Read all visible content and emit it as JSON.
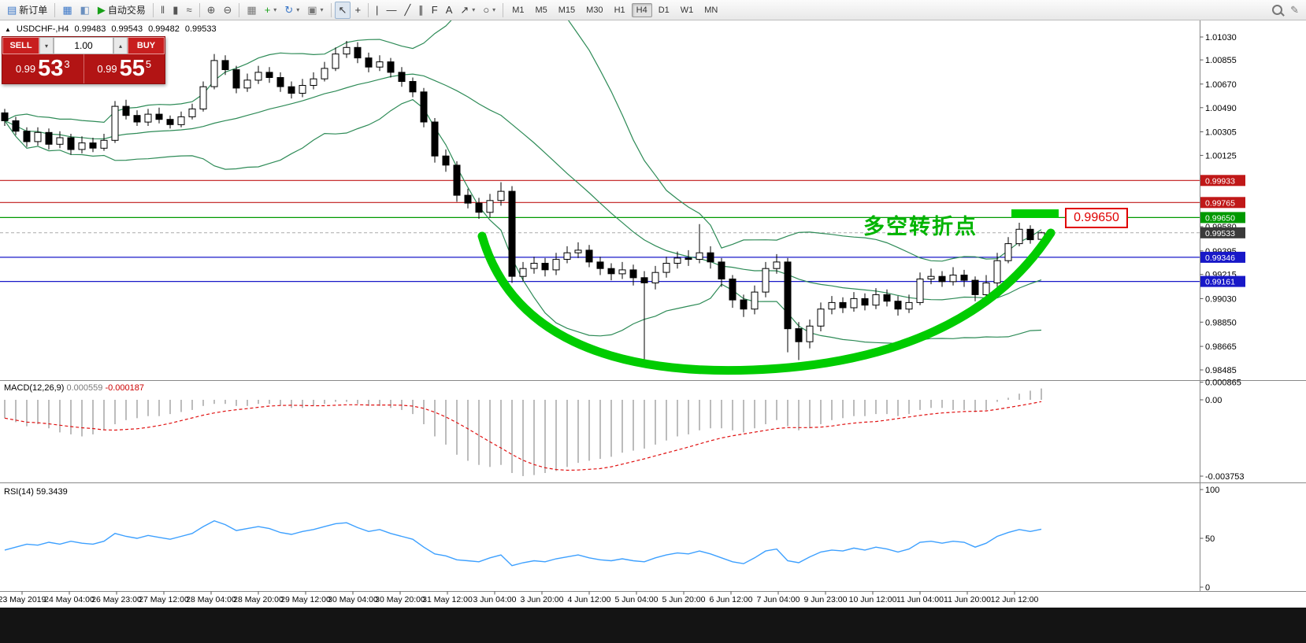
{
  "toolbar": {
    "timeframes": [
      "M1",
      "M5",
      "M15",
      "M30",
      "H1",
      "H4",
      "D1",
      "W1",
      "MN"
    ],
    "active_timeframe": "H4",
    "items": [
      {
        "kind": "labeled",
        "name": "new-order",
        "glyph": "▤",
        "glyph_color": "#3c78c8",
        "label": "新订单"
      },
      {
        "kind": "sep"
      },
      {
        "kind": "icon",
        "name": "chart-windows",
        "glyph": "▦",
        "color": "#3c78c8"
      },
      {
        "kind": "icon",
        "name": "profiles",
        "glyph": "◧",
        "color": "#6a8fbf"
      },
      {
        "kind": "labeled",
        "name": "autotrading",
        "glyph": "▶",
        "glyph_color": "#18a018",
        "label": "自动交易"
      },
      {
        "kind": "sep"
      },
      {
        "kind": "icon",
        "name": "bar-chart",
        "glyph": "‖",
        "color": "#555555"
      },
      {
        "kind": "icon",
        "name": "candlestick-chart",
        "glyph": "▮",
        "color": "#555555"
      },
      {
        "kind": "icon",
        "name": "line-chart",
        "glyph": "≈",
        "color": "#555555"
      },
      {
        "kind": "sep"
      },
      {
        "kind": "icon",
        "name": "zoom-in",
        "glyph": "⊕",
        "color": "#555555"
      },
      {
        "kind": "icon",
        "name": "zoom-out",
        "glyph": "⊖",
        "color": "#555555"
      },
      {
        "kind": "sep"
      },
      {
        "kind": "icon",
        "name": "tile-windows",
        "glyph": "▦",
        "color": "#777777"
      },
      {
        "kind": "icon",
        "name": "indicators",
        "glyph": "+",
        "color": "#18a018",
        "caret": true
      },
      {
        "kind": "icon",
        "name": "periods",
        "glyph": "↻",
        "color": "#3c78c8",
        "caret": true
      },
      {
        "kind": "icon",
        "name": "templates",
        "glyph": "▣",
        "color": "#777777",
        "caret": true
      },
      {
        "kind": "sep"
      },
      {
        "kind": "icon",
        "name": "cursor",
        "glyph": "↖",
        "color": "#333333",
        "active": true
      },
      {
        "kind": "icon",
        "name": "crosshair",
        "glyph": "+",
        "color": "#333333"
      },
      {
        "kind": "sep"
      },
      {
        "kind": "icon",
        "name": "vertical-line",
        "glyph": "|",
        "color": "#333333"
      },
      {
        "kind": "icon",
        "name": "horizontal-line",
        "glyph": "—",
        "color": "#333333"
      },
      {
        "kind": "icon",
        "name": "trendline",
        "glyph": "╱",
        "color": "#333333"
      },
      {
        "kind": "icon",
        "name": "equidistant-channel",
        "glyph": "∥",
        "color": "#333333"
      },
      {
        "kind": "icon",
        "name": "fibonacci",
        "glyph": "F",
        "color": "#333333"
      },
      {
        "kind": "icon",
        "name": "text-label",
        "glyph": "A",
        "color": "#333333"
      },
      {
        "kind": "icon",
        "name": "arrows",
        "glyph": "↗",
        "color": "#333333",
        "caret": true
      },
      {
        "kind": "icon",
        "name": "shapes",
        "glyph": "○",
        "color": "#333333",
        "caret": true
      },
      {
        "kind": "sep"
      },
      {
        "kind": "timeframes"
      },
      {
        "kind": "spacer"
      },
      {
        "kind": "search"
      },
      {
        "kind": "icon",
        "name": "edit",
        "glyph": "✎",
        "color": "#777777"
      }
    ]
  },
  "symbol_bar": {
    "icon": "▲",
    "symbol": "USDCHF-,H4",
    "open": "0.99483",
    "high": "0.99543",
    "low": "0.99482",
    "close": "0.99533"
  },
  "trade_panel": {
    "sell_label": "SELL",
    "buy_label": "BUY",
    "volume": "1.00",
    "dropdown_icon": "▾",
    "up_icon": "▴",
    "sell_price": {
      "main": "0.99",
      "big": "53",
      "sup": "3"
    },
    "buy_price": {
      "main": "0.99",
      "big": "55",
      "sup": "5"
    }
  },
  "annotation": {
    "text": "多空转折点",
    "callout_price": "0.99650"
  },
  "chart_data": {
    "type": "candlestick",
    "symbol": "USDCHF-",
    "timeframe": "H4",
    "arc_color": "#00cc00",
    "price_axis_ticks": [
      "1.01030",
      "1.00855",
      "1.00670",
      "1.00490",
      "1.00305",
      "1.00125",
      "0.99945",
      "0.99765",
      "0.99580",
      "0.99395",
      "0.99215",
      "0.99030",
      "0.98850",
      "0.98665",
      "0.98485"
    ],
    "levels": [
      {
        "price": 0.99933,
        "label": "0.99933",
        "color": "#c01818"
      },
      {
        "price": 0.99765,
        "label": "0.99765",
        "color": "#c01818"
      },
      {
        "price": 0.9965,
        "label": "0.99650",
        "color": "#009900"
      },
      {
        "price": 0.99346,
        "label": "0.99346",
        "color": "#1818c8"
      },
      {
        "price": 0.99161,
        "label": "0.99161",
        "color": "#1818c8"
      }
    ],
    "current_price": {
      "value": 0.99533,
      "label": "0.99533",
      "tag_color": "#3a3a3a"
    },
    "bollinger": {
      "period": 20,
      "deviation": 2,
      "color": "#2e8b57"
    },
    "time_labels": [
      "23 May 2019",
      "24 May 04:00",
      "26 May 23:00",
      "27 May 12:00",
      "28 May 04:00",
      "28 May 20:00",
      "29 May 12:00",
      "30 May 04:00",
      "30 May 20:00",
      "31 May 12:00",
      "3 Jun 04:00",
      "3 Jun 20:00",
      "4 Jun 12:00",
      "5 Jun 04:00",
      "5 Jun 20:00",
      "6 Jun 12:00",
      "7 Jun 04:00",
      "9 Jun 23:00",
      "10 Jun 12:00",
      "11 Jun 04:00",
      "11 Jun 20:00",
      "12 Jun 12:00"
    ],
    "ohlc": [
      [
        1.0045,
        1.0048,
        1.0035,
        1.0039
      ],
      [
        1.0039,
        1.0042,
        1.0028,
        1.0031
      ],
      [
        1.0031,
        1.0034,
        1.0019,
        1.0023
      ],
      [
        1.0023,
        1.0034,
        1.002,
        1.003
      ],
      [
        1.003,
        1.0033,
        1.0017,
        1.0021
      ],
      [
        1.0021,
        1.0031,
        1.0018,
        1.0026
      ],
      [
        1.0026,
        1.0029,
        1.0013,
        1.0017
      ],
      [
        1.0017,
        1.0027,
        1.0014,
        1.0022
      ],
      [
        1.0022,
        1.0026,
        1.0015,
        1.0018
      ],
      [
        1.0018,
        1.0029,
        1.0016,
        1.0024
      ],
      [
        1.0024,
        1.0054,
        1.0022,
        1.005
      ],
      [
        1.005,
        1.0055,
        1.004,
        1.0043
      ],
      [
        1.0043,
        1.0047,
        1.0035,
        1.0038
      ],
      [
        1.0038,
        1.0048,
        1.0035,
        1.0044
      ],
      [
        1.0044,
        1.0049,
        1.0037,
        1.004
      ],
      [
        1.004,
        1.0043,
        1.0033,
        1.0036
      ],
      [
        1.0036,
        1.0046,
        1.0034,
        1.0042
      ],
      [
        1.0042,
        1.0052,
        1.004,
        1.0048
      ],
      [
        1.0048,
        1.0069,
        1.0046,
        1.0065
      ],
      [
        1.0065,
        1.009,
        1.0063,
        1.0085
      ],
      [
        1.0085,
        1.0089,
        1.0074,
        1.0078
      ],
      [
        1.0078,
        1.0081,
        1.006,
        1.0064
      ],
      [
        1.0064,
        1.0075,
        1.0061,
        1.007
      ],
      [
        1.007,
        1.0081,
        1.0067,
        1.0076
      ],
      [
        1.0076,
        1.008,
        1.0068,
        1.0072
      ],
      [
        1.0072,
        1.0076,
        1.0061,
        1.0065
      ],
      [
        1.0065,
        1.0069,
        1.0056,
        1.006
      ],
      [
        1.006,
        1.0071,
        1.0057,
        1.0066
      ],
      [
        1.0066,
        1.0076,
        1.0063,
        1.0071
      ],
      [
        1.0071,
        1.0084,
        1.0069,
        1.0079
      ],
      [
        1.0079,
        1.0095,
        1.0077,
        1.009
      ],
      [
        1.009,
        1.01,
        1.0087,
        1.0095
      ],
      [
        1.0095,
        1.0099,
        1.0083,
        1.0087
      ],
      [
        1.0087,
        1.0091,
        1.0076,
        1.008
      ],
      [
        1.008,
        1.0089,
        1.0077,
        1.0084
      ],
      [
        1.0084,
        1.0087,
        1.0072,
        1.0076
      ],
      [
        1.0076,
        1.008,
        1.0065,
        1.0069
      ],
      [
        1.0069,
        1.0072,
        1.0057,
        1.0061
      ],
      [
        1.0061,
        1.0064,
        1.0034,
        1.0038
      ],
      [
        1.0038,
        1.0041,
        1.0007,
        1.0012
      ],
      [
        1.0012,
        1.0017,
        1.0,
        1.0005
      ],
      [
        1.0005,
        1.0008,
        0.9977,
        0.9982
      ],
      [
        0.9982,
        0.9987,
        0.9972,
        0.9976
      ],
      [
        0.9976,
        0.998,
        0.9964,
        0.9969
      ],
      [
        0.9969,
        0.9983,
        0.9965,
        0.9978
      ],
      [
        0.9978,
        0.9992,
        0.9974,
        0.9985
      ],
      [
        0.9985,
        0.9989,
        0.9915,
        0.992
      ],
      [
        0.992,
        0.9931,
        0.9916,
        0.9926
      ],
      [
        0.9926,
        0.9935,
        0.9922,
        0.993
      ],
      [
        0.993,
        0.9934,
        0.992,
        0.9925
      ],
      [
        0.9925,
        0.9938,
        0.9921,
        0.9933
      ],
      [
        0.9933,
        0.9943,
        0.993,
        0.9938
      ],
      [
        0.9938,
        0.9946,
        0.9934,
        0.994
      ],
      [
        0.994,
        0.9944,
        0.9927,
        0.9931
      ],
      [
        0.9931,
        0.9935,
        0.9921,
        0.9926
      ],
      [
        0.9926,
        0.993,
        0.9917,
        0.9922
      ],
      [
        0.9922,
        0.9931,
        0.9918,
        0.9925
      ],
      [
        0.9925,
        0.9929,
        0.9913,
        0.9919
      ],
      [
        0.9919,
        0.9924,
        0.9851,
        0.9915
      ],
      [
        0.9915,
        0.9928,
        0.991,
        0.9923
      ],
      [
        0.9923,
        0.9935,
        0.9919,
        0.993
      ],
      [
        0.993,
        0.9939,
        0.9926,
        0.9934
      ],
      [
        0.9934,
        0.994,
        0.9928,
        0.9933
      ],
      [
        0.9933,
        0.996,
        0.993,
        0.9938
      ],
      [
        0.9938,
        0.9943,
        0.9926,
        0.9931
      ],
      [
        0.9931,
        0.9934,
        0.9912,
        0.9918
      ],
      [
        0.9918,
        0.9921,
        0.9896,
        0.9902
      ],
      [
        0.9902,
        0.9906,
        0.9889,
        0.9895
      ],
      [
        0.9895,
        0.9913,
        0.9891,
        0.9908
      ],
      [
        0.9908,
        0.9931,
        0.9904,
        0.9926
      ],
      [
        0.9926,
        0.9937,
        0.9922,
        0.9931
      ],
      [
        0.9931,
        0.9934,
        0.9862,
        0.988
      ],
      [
        0.988,
        0.9885,
        0.9856,
        0.987
      ],
      [
        0.987,
        0.9887,
        0.9865,
        0.9882
      ],
      [
        0.9882,
        0.99,
        0.9878,
        0.9895
      ],
      [
        0.9895,
        0.9905,
        0.9891,
        0.99
      ],
      [
        0.99,
        0.9904,
        0.9892,
        0.9896
      ],
      [
        0.9896,
        0.9908,
        0.9893,
        0.9903
      ],
      [
        0.9903,
        0.9907,
        0.9894,
        0.9898
      ],
      [
        0.9898,
        0.9911,
        0.9895,
        0.9906
      ],
      [
        0.9906,
        0.991,
        0.9897,
        0.9901
      ],
      [
        0.9901,
        0.9905,
        0.989,
        0.9895
      ],
      [
        0.9895,
        0.9906,
        0.9892,
        0.99
      ],
      [
        0.99,
        0.9923,
        0.9898,
        0.9918
      ],
      [
        0.9918,
        0.9926,
        0.9914,
        0.992
      ],
      [
        0.992,
        0.9924,
        0.9912,
        0.9916
      ],
      [
        0.9916,
        0.9927,
        0.9913,
        0.9921
      ],
      [
        0.9921,
        0.9925,
        0.9912,
        0.9917
      ],
      [
        0.9917,
        0.992,
        0.9901,
        0.9906
      ],
      [
        0.9906,
        0.9921,
        0.9903,
        0.9915
      ],
      [
        0.9915,
        0.9938,
        0.9912,
        0.9932
      ],
      [
        0.9932,
        0.995,
        0.993,
        0.9945
      ],
      [
        0.9945,
        0.9961,
        0.9943,
        0.9956
      ],
      [
        0.9956,
        0.9959,
        0.9945,
        0.9948
      ],
      [
        0.99483,
        0.99543,
        0.99482,
        0.99533
      ]
    ],
    "macd": {
      "label": "MACD(12,26,9)",
      "main_value": "0.000559",
      "signal_value": "-0.000187",
      "axis": [
        "0.000865",
        "0.00",
        "-0.003753"
      ],
      "histogram": [
        -0.0009,
        -0.0011,
        -0.0013,
        -0.0012,
        -0.0014,
        -0.0016,
        -0.0017,
        -0.0018,
        -0.0017,
        -0.0015,
        -0.0012,
        -0.001,
        -0.0009,
        -0.0008,
        -0.0008,
        -0.0007,
        -0.0006,
        -0.0005,
        -0.0003,
        -0.0002,
        -0.0002,
        -0.0003,
        -0.0003,
        -0.0002,
        -0.0002,
        -0.0003,
        -0.0004,
        -0.0004,
        -0.0003,
        -0.0002,
        -0.0001,
        -0.0001,
        -0.0002,
        -0.0003,
        -0.0003,
        -0.0004,
        -0.0005,
        -0.0007,
        -0.0012,
        -0.0018,
        -0.0022,
        -0.0027,
        -0.003,
        -0.0032,
        -0.0033,
        -0.0032,
        -0.0036,
        -0.00375,
        -0.0037,
        -0.0036,
        -0.0035,
        -0.0033,
        -0.0031,
        -0.003,
        -0.0029,
        -0.0028,
        -0.0026,
        -0.0025,
        -0.0024,
        -0.0022,
        -0.002,
        -0.0018,
        -0.0017,
        -0.0015,
        -0.0014,
        -0.0014,
        -0.0015,
        -0.0016,
        -0.0014,
        -0.0012,
        -0.001,
        -0.0013,
        -0.0015,
        -0.0014,
        -0.0012,
        -0.001,
        -0.0009,
        -0.0008,
        -0.0008,
        -0.0007,
        -0.0007,
        -0.0008,
        -0.0007,
        -0.0005,
        -0.0004,
        -0.0004,
        -0.0005,
        -0.0005,
        -0.0006,
        -0.0005,
        -0.0001,
        0.0001,
        0.0003,
        0.00045,
        0.000559
      ]
    },
    "rsi": {
      "label": "RSI(14)",
      "value": "59.3439",
      "color": "#3da0ff",
      "axis": [
        "100",
        "50",
        "0"
      ],
      "values": [
        38,
        41,
        44,
        43,
        46,
        44,
        47,
        45,
        44,
        47,
        55,
        52,
        50,
        53,
        51,
        49,
        52,
        55,
        62,
        68,
        64,
        58,
        60,
        62,
        60,
        56,
        54,
        57,
        59,
        62,
        65,
        66,
        61,
        57,
        59,
        55,
        52,
        49,
        41,
        34,
        32,
        28,
        27,
        26,
        30,
        33,
        22,
        25,
        27,
        26,
        29,
        31,
        33,
        30,
        28,
        27,
        29,
        27,
        26,
        30,
        33,
        35,
        34,
        37,
        34,
        30,
        26,
        24,
        30,
        37,
        39,
        27,
        25,
        31,
        36,
        38,
        37,
        40,
        38,
        41,
        39,
        36,
        39,
        46,
        47,
        45,
        47,
        46,
        41,
        45,
        52,
        56,
        59,
        57,
        59.34
      ]
    }
  }
}
